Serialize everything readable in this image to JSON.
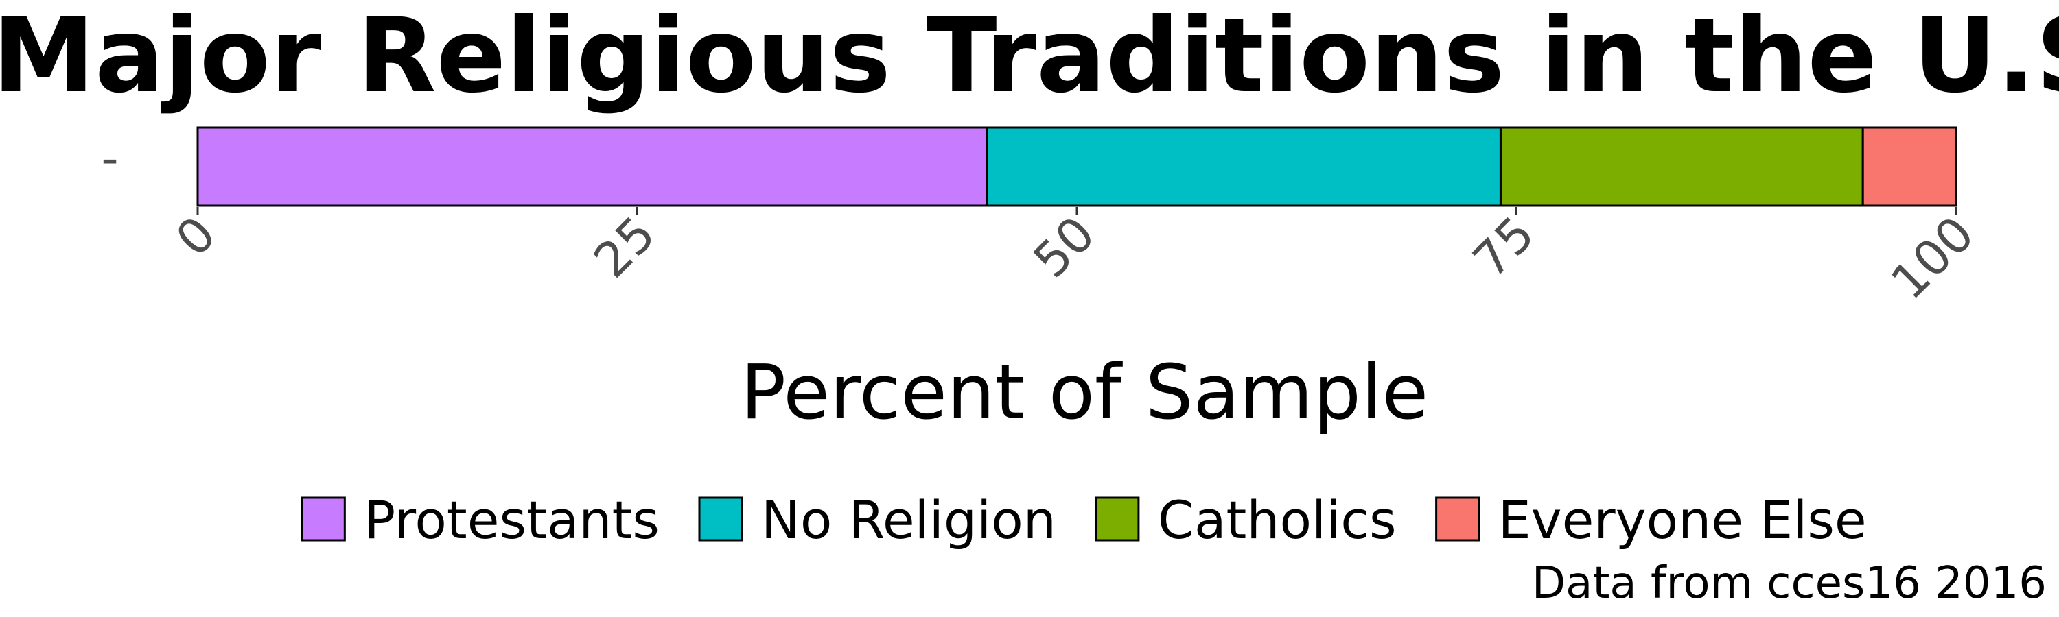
{
  "chart_data": {
    "type": "bar",
    "orientation": "horizontal",
    "stacked": true,
    "title": "Major Religious Traditions in the U.S.",
    "xlabel": "Percent of Sample",
    "ylabel": "",
    "xlim": [
      0,
      100
    ],
    "x_ticks": [
      0,
      25,
      50,
      75,
      100
    ],
    "x_tick_labels": [
      "0",
      "25",
      "50",
      "75",
      "100"
    ],
    "categories": [
      "-"
    ],
    "series": [
      {
        "name": "Protestants",
        "values": [
          44.9
        ],
        "color": "#C77CFF"
      },
      {
        "name": "No Religion",
        "values": [
          29.2
        ],
        "color": "#00BFC4"
      },
      {
        "name": "Catholics",
        "values": [
          20.6
        ],
        "color": "#7CAE00"
      },
      {
        "name": "Everyone Else",
        "values": [
          5.3
        ],
        "color": "#F8766D"
      }
    ],
    "legend_position": "bottom",
    "grid": false,
    "caption": "Data from cces16 2016"
  }
}
